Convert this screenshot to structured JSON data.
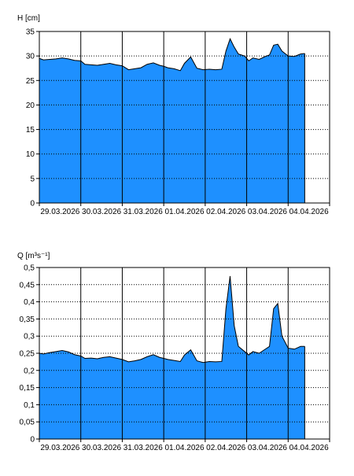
{
  "chart_data": [
    {
      "type": "area",
      "ylabel": "H [cm]",
      "ylim": [
        0,
        35
      ],
      "yticks": [
        0,
        5,
        10,
        15,
        20,
        25,
        30,
        35
      ],
      "ytick_labels": [
        "0",
        "5",
        "10",
        "15",
        "20",
        "25",
        "30",
        "35"
      ],
      "x_date_labels": [
        "29.03.2026",
        "30.03.2026",
        "31.03.2026",
        "01.04.2026",
        "02.04.2026",
        "03.04.2026",
        "04.04.2026"
      ],
      "grid": true,
      "fill_color": "#1e90ff",
      "line_color": "#000000",
      "series": [
        {
          "x": [
            0,
            0.1,
            0.25,
            0.4,
            0.55,
            0.7,
            0.85,
            1.0,
            1.1,
            1.25,
            1.4,
            1.55,
            1.7,
            1.85,
            2.0,
            2.15,
            2.3,
            2.45,
            2.6,
            2.75,
            2.9,
            3.0,
            3.1,
            3.25,
            3.4,
            3.5,
            3.65,
            3.8,
            3.95,
            4.1,
            4.25,
            4.4,
            4.5,
            4.6,
            4.7,
            4.8,
            4.95,
            5.05,
            5.15,
            5.3,
            5.45,
            5.55,
            5.65,
            5.75,
            5.85,
            6.0,
            6.15,
            6.3,
            6.4
          ],
          "y": [
            29.5,
            29.2,
            29.3,
            29.4,
            29.6,
            29.4,
            29.1,
            29.0,
            28.3,
            28.2,
            28.1,
            28.3,
            28.5,
            28.2,
            28.0,
            27.2,
            27.4,
            27.6,
            28.3,
            28.6,
            28.1,
            27.9,
            27.6,
            27.4,
            27.0,
            28.5,
            29.8,
            27.5,
            27.2,
            27.3,
            27.2,
            27.3,
            31.0,
            33.5,
            31.8,
            30.4,
            30.0,
            29.0,
            29.6,
            29.3,
            29.9,
            30.2,
            32.2,
            32.4,
            31.0,
            30.0,
            29.9,
            30.4,
            30.5
          ]
        }
      ]
    },
    {
      "type": "area",
      "ylabel": "Q [m³s⁻¹]",
      "ylim": [
        0,
        0.5
      ],
      "yticks": [
        0,
        0.05,
        0.1,
        0.15,
        0.2,
        0.25,
        0.3,
        0.35,
        0.4,
        0.45,
        0.5
      ],
      "ytick_labels": [
        "0",
        "0,05",
        "0,1",
        "0,15",
        "0,2",
        "0,25",
        "0,3",
        "0,35",
        "0,4",
        "0,45",
        "0,5"
      ],
      "x_date_labels": [
        "29.03.2026",
        "30.03.2026",
        "31.03.2026",
        "01.04.2026",
        "02.04.2026",
        "03.04.2026",
        "04.04.2026"
      ],
      "grid": true,
      "fill_color": "#1e90ff",
      "line_color": "#000000",
      "series": [
        {
          "x": [
            0,
            0.1,
            0.25,
            0.4,
            0.55,
            0.7,
            0.85,
            1.0,
            1.1,
            1.25,
            1.4,
            1.55,
            1.7,
            1.85,
            2.0,
            2.15,
            2.3,
            2.45,
            2.6,
            2.75,
            2.9,
            3.0,
            3.1,
            3.25,
            3.4,
            3.5,
            3.65,
            3.8,
            3.95,
            4.1,
            4.25,
            4.4,
            4.5,
            4.6,
            4.7,
            4.8,
            4.95,
            5.05,
            5.15,
            5.3,
            5.45,
            5.55,
            5.65,
            5.75,
            5.85,
            6.0,
            6.15,
            6.3,
            6.4
          ],
          "y": [
            0.25,
            0.248,
            0.252,
            0.255,
            0.258,
            0.254,
            0.246,
            0.242,
            0.235,
            0.236,
            0.234,
            0.238,
            0.24,
            0.236,
            0.232,
            0.225,
            0.228,
            0.232,
            0.24,
            0.246,
            0.238,
            0.235,
            0.232,
            0.229,
            0.226,
            0.245,
            0.26,
            0.228,
            0.223,
            0.226,
            0.225,
            0.226,
            0.38,
            0.475,
            0.33,
            0.27,
            0.255,
            0.245,
            0.255,
            0.25,
            0.262,
            0.27,
            0.38,
            0.395,
            0.3,
            0.265,
            0.262,
            0.27,
            0.27
          ]
        }
      ]
    }
  ]
}
